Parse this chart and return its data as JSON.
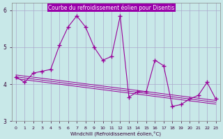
{
  "title": "Courbe du refroidissement éolien pour Disentis",
  "xlabel": "Windchill (Refroidissement éolien,°C)",
  "ylabel": "",
  "x": [
    0,
    1,
    2,
    3,
    4,
    5,
    6,
    7,
    8,
    9,
    10,
    11,
    12,
    13,
    14,
    15,
    16,
    17,
    18,
    19,
    20,
    21,
    22,
    23
  ],
  "y_main": [
    4.2,
    4.05,
    4.3,
    4.35,
    4.4,
    5.05,
    5.55,
    5.85,
    5.55,
    5.0,
    4.65,
    4.75,
    5.85,
    3.65,
    3.8,
    3.8,
    4.65,
    4.5,
    3.4,
    3.45,
    3.6,
    3.7,
    4.05,
    3.6
  ],
  "y_line1": [
    4.2,
    4.17,
    4.14,
    4.11,
    4.08,
    4.05,
    4.02,
    3.99,
    3.96,
    3.93,
    3.9,
    3.87,
    3.84,
    3.81,
    3.78,
    3.75,
    3.72,
    3.69,
    3.66,
    3.63,
    3.6,
    3.57,
    3.54,
    3.51
  ],
  "y_line2": [
    4.25,
    4.22,
    4.19,
    4.16,
    4.13,
    4.1,
    4.07,
    4.04,
    4.01,
    3.98,
    3.95,
    3.92,
    3.89,
    3.86,
    3.83,
    3.8,
    3.77,
    3.74,
    3.71,
    3.68,
    3.65,
    3.62,
    3.59,
    3.56
  ],
  "y_line3": [
    4.15,
    4.12,
    4.09,
    4.06,
    4.03,
    4.0,
    3.97,
    3.94,
    3.91,
    3.88,
    3.85,
    3.82,
    3.79,
    3.76,
    3.73,
    3.7,
    3.67,
    3.64,
    3.61,
    3.58,
    3.55,
    3.52,
    3.49,
    3.46
  ],
  "ylim": [
    3.0,
    6.2
  ],
  "yticks": [
    3,
    4,
    5,
    6
  ],
  "xticks": [
    0,
    1,
    2,
    3,
    4,
    5,
    6,
    7,
    8,
    9,
    10,
    11,
    12,
    13,
    14,
    15,
    16,
    17,
    18,
    19,
    20,
    21,
    22,
    23
  ],
  "bg_color": "#c8e8e8",
  "line_color": "#990099",
  "grid_color": "#aaaacc",
  "title_bg": "#9900aa"
}
